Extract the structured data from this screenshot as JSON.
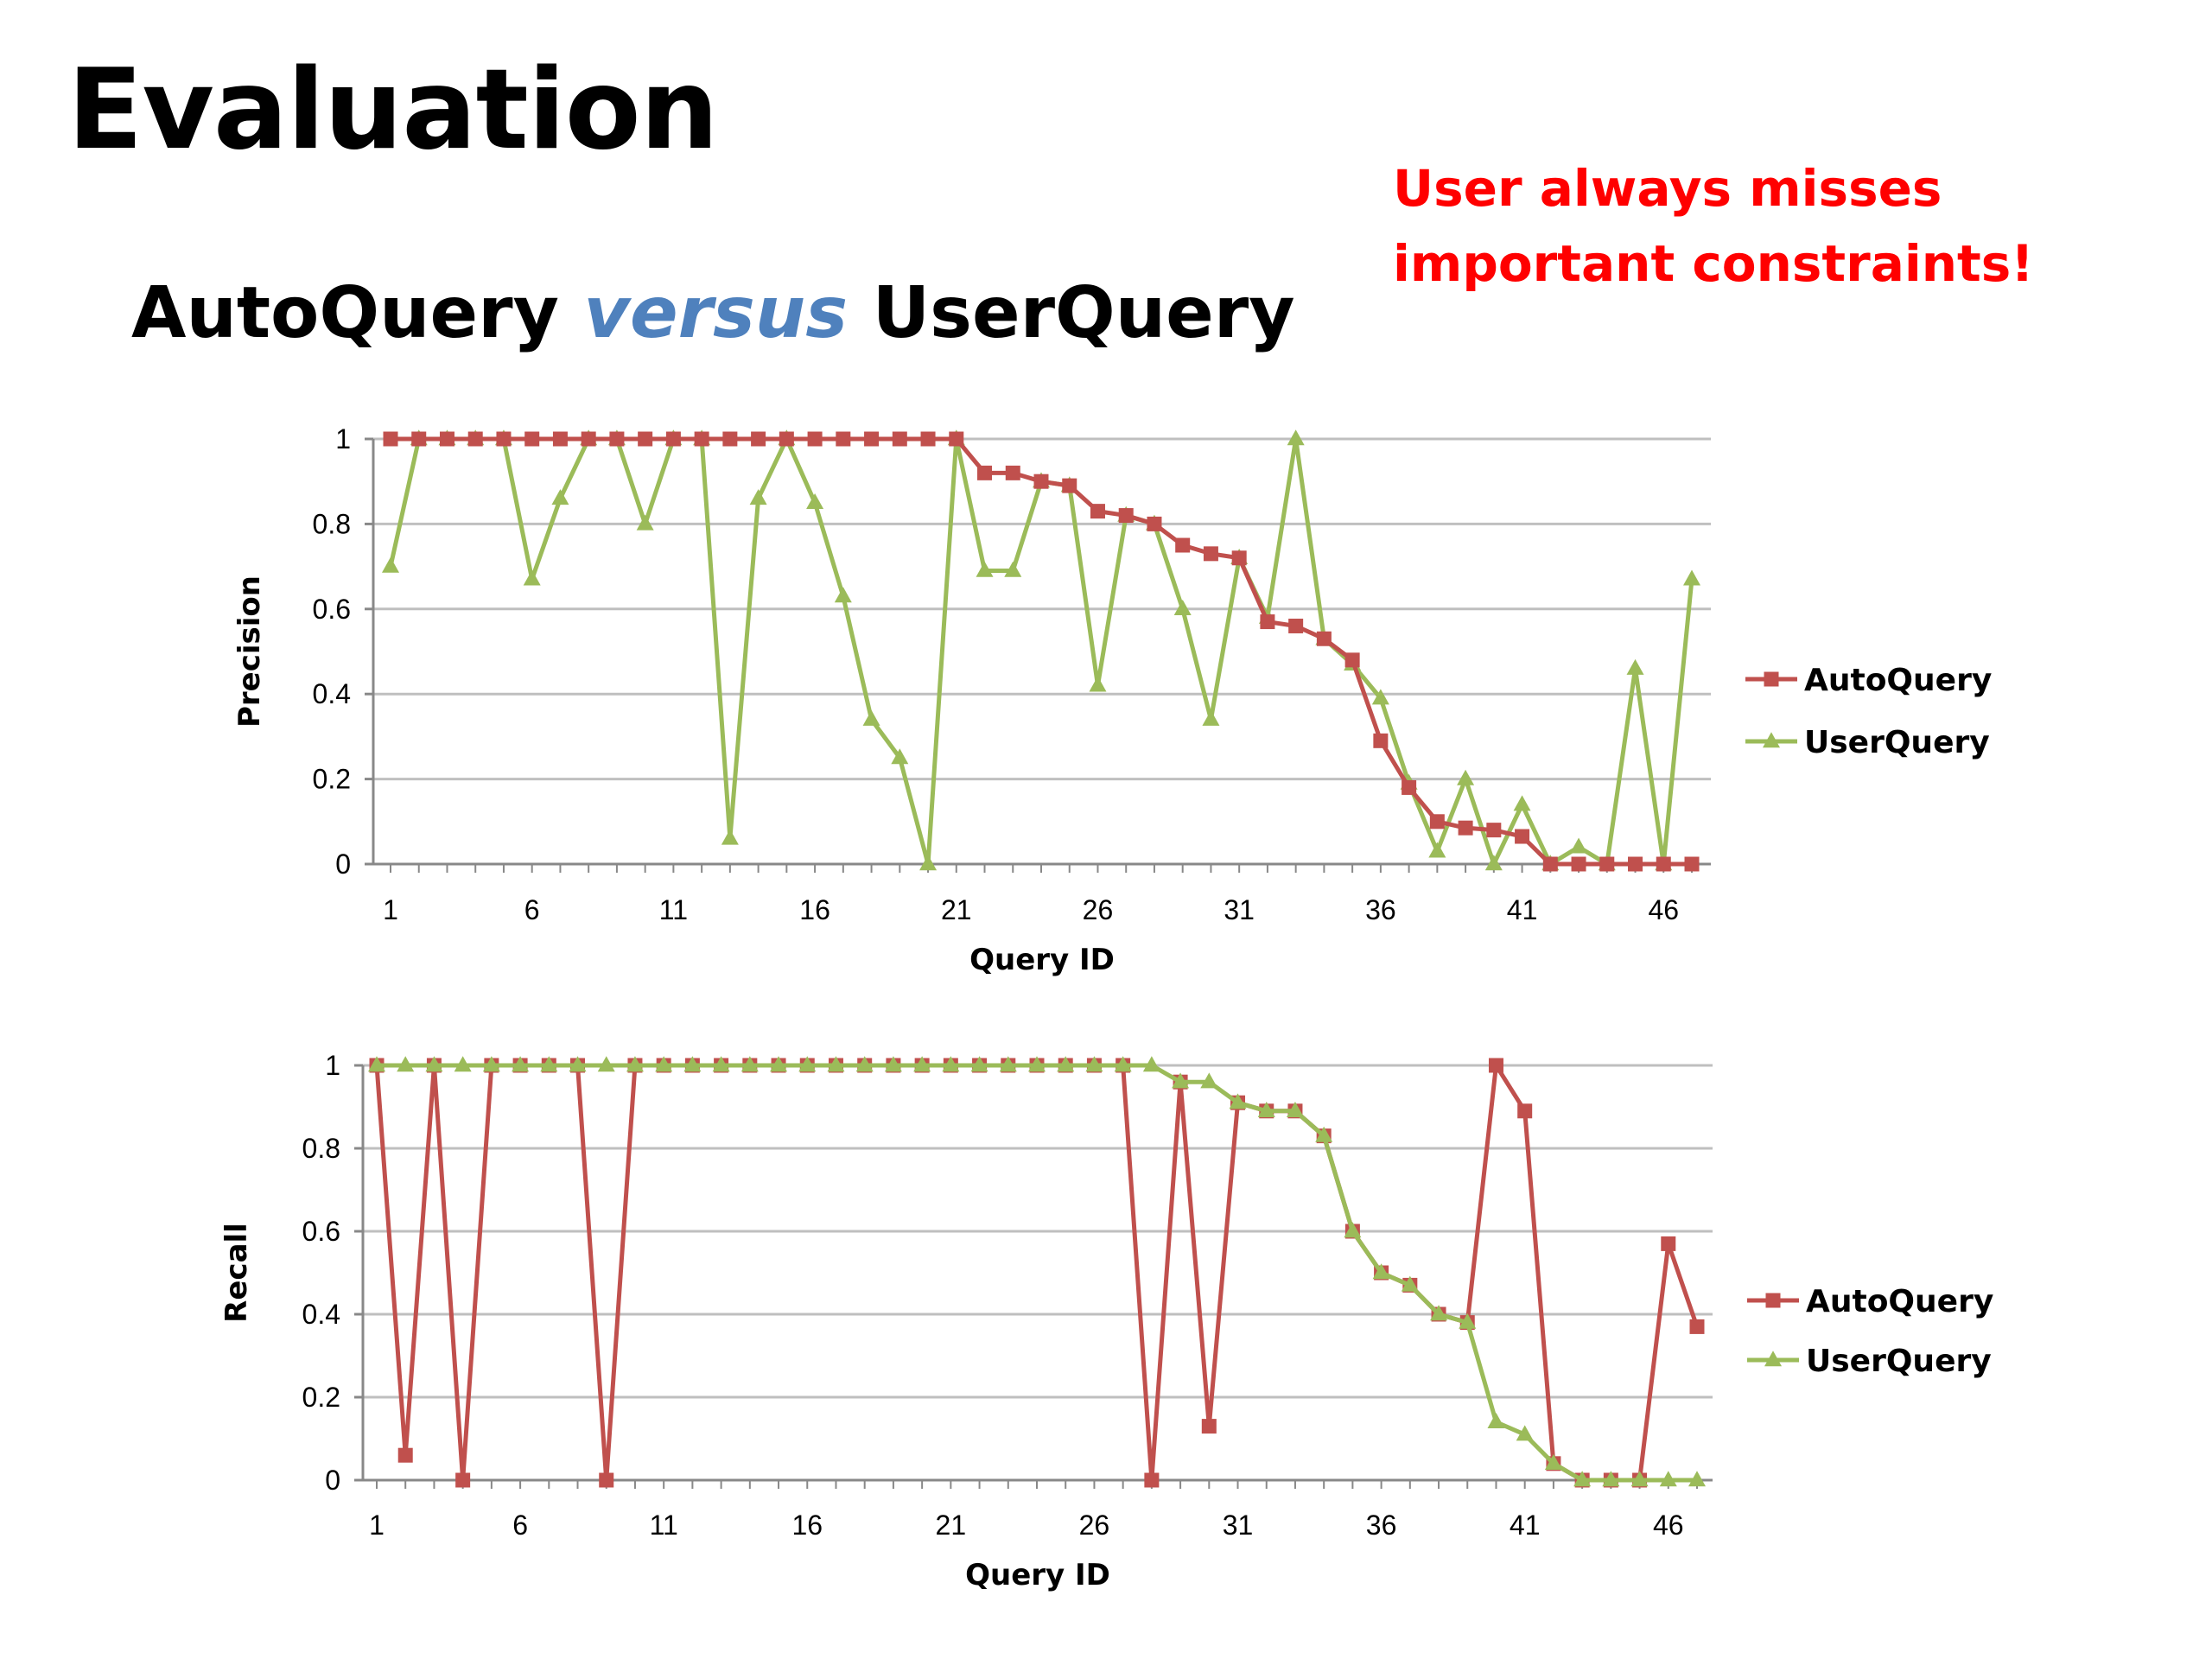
{
  "slide": {
    "title": "Evaluation",
    "subtitle_part1": "AutoQuery ",
    "subtitle_versus": "versus",
    "subtitle_part2": " UserQuery",
    "callout": "User always misses important constraints!"
  },
  "colors": {
    "auto": "#c0504d",
    "user": "#9bbb59",
    "grid": "#bfbfbf",
    "callout": "#ff0000",
    "versus": "#4f81bd"
  },
  "chart_data": [
    {
      "type": "line",
      "xlabel": "Query ID",
      "ylabel": "Precision",
      "x": [
        1,
        2,
        3,
        4,
        5,
        6,
        7,
        8,
        9,
        10,
        11,
        12,
        13,
        14,
        15,
        16,
        17,
        18,
        19,
        20,
        21,
        22,
        23,
        24,
        25,
        26,
        27,
        28,
        29,
        30,
        31,
        32,
        33,
        34,
        35,
        36,
        37,
        38,
        39,
        40,
        41,
        42,
        43,
        44,
        45,
        46,
        47
      ],
      "xticks": [
        1,
        6,
        11,
        16,
        21,
        26,
        31,
        36,
        41,
        46
      ],
      "yticks": [
        0,
        0.2,
        0.4,
        0.6,
        0.8,
        1
      ],
      "ytick_labels": [
        "0",
        "0.2",
        "0.4",
        "0.6",
        "0.8",
        "1"
      ],
      "ylim": [
        0,
        1
      ],
      "grid": true,
      "legend_position": "right",
      "series": [
        {
          "name": "AutoQuery",
          "marker": "square",
          "color": "#c0504d",
          "values": [
            1,
            1,
            1,
            1,
            1,
            1,
            1,
            1,
            1,
            1,
            1,
            1,
            1,
            1,
            1,
            1,
            1,
            1,
            1,
            1,
            1,
            0.92,
            0.92,
            0.9,
            0.89,
            0.83,
            0.82,
            0.8,
            0.75,
            0.73,
            0.72,
            0.57,
            0.56,
            0.53,
            0.48,
            0.29,
            0.18,
            0.1,
            0.085,
            0.08,
            0.065,
            0,
            0,
            0,
            0,
            0,
            0
          ]
        },
        {
          "name": "UserQuery",
          "marker": "triangle",
          "color": "#9bbb59",
          "values": [
            0.7,
            1,
            1,
            1,
            1,
            0.67,
            0.86,
            1,
            1,
            0.8,
            1,
            1,
            0.06,
            0.86,
            1,
            0.85,
            0.63,
            0.34,
            0.25,
            0,
            1,
            0.69,
            0.69,
            0.9,
            0.89,
            0.42,
            0.82,
            0.8,
            0.6,
            0.34,
            0.72,
            0.58,
            1,
            0.53,
            0.47,
            0.39,
            0.19,
            0.03,
            0.2,
            0,
            0.14,
            0,
            0.04,
            0,
            0.46,
            0,
            0.67
          ]
        }
      ]
    },
    {
      "type": "line",
      "xlabel": "Query ID",
      "ylabel": "Recall",
      "x": [
        1,
        2,
        3,
        4,
        5,
        6,
        7,
        8,
        9,
        10,
        11,
        12,
        13,
        14,
        15,
        16,
        17,
        18,
        19,
        20,
        21,
        22,
        23,
        24,
        25,
        26,
        27,
        28,
        29,
        30,
        31,
        32,
        33,
        34,
        35,
        36,
        37,
        38,
        39,
        40,
        41,
        42,
        43,
        44,
        45,
        46,
        47
      ],
      "xticks": [
        1,
        6,
        11,
        16,
        21,
        26,
        31,
        36,
        41,
        46
      ],
      "yticks": [
        0,
        0.2,
        0.4,
        0.6,
        0.8,
        1
      ],
      "ytick_labels": [
        "0",
        "0.2",
        "0.4",
        "0.6",
        "0.8",
        "1"
      ],
      "ylim": [
        0,
        1
      ],
      "grid": true,
      "legend_position": "right",
      "series": [
        {
          "name": "AutoQuery",
          "marker": "square",
          "color": "#c0504d",
          "values": [
            1,
            0.06,
            1,
            0,
            1,
            1,
            1,
            1,
            0,
            1,
            1,
            1,
            1,
            1,
            1,
            1,
            1,
            1,
            1,
            1,
            1,
            1,
            1,
            1,
            1,
            1,
            1,
            0,
            0.96,
            0.13,
            0.91,
            0.89,
            0.89,
            0.83,
            0.6,
            0.5,
            0.47,
            0.4,
            0.38,
            1,
            0.89,
            0.04,
            0,
            0,
            0,
            0.57,
            0.37
          ]
        },
        {
          "name": "UserQuery",
          "marker": "triangle",
          "color": "#9bbb59",
          "values": [
            1,
            1,
            1,
            1,
            1,
            1,
            1,
            1,
            1,
            1,
            1,
            1,
            1,
            1,
            1,
            1,
            1,
            1,
            1,
            1,
            1,
            1,
            1,
            1,
            1,
            1,
            1,
            1,
            0.96,
            0.96,
            0.91,
            0.89,
            0.89,
            0.83,
            0.6,
            0.5,
            0.47,
            0.4,
            0.38,
            0.14,
            0.11,
            0.04,
            0,
            0,
            0,
            0,
            0
          ]
        }
      ]
    }
  ]
}
